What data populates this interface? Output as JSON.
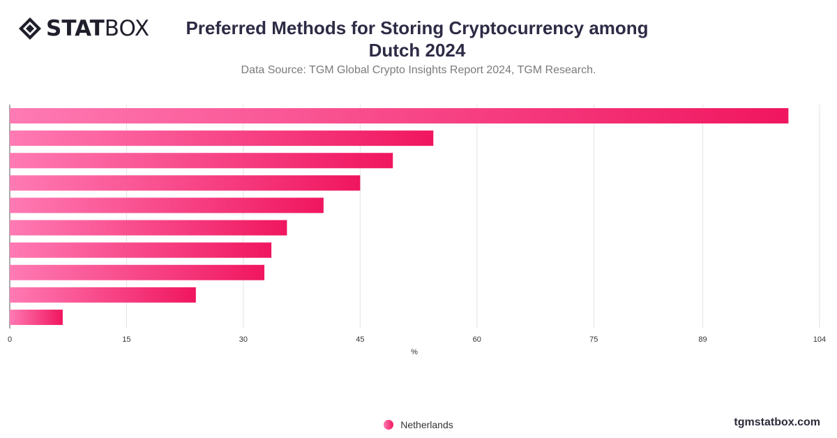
{
  "brand": {
    "logo_bold": "STAT",
    "logo_light": "BOX",
    "site": "tgmstatbox.com"
  },
  "header": {
    "title_line1": "Preferred Methods for Storing Cryptocurrency among",
    "title_line2": "Dutch 2024",
    "subtitle": "Data Source: TGM Global Crypto Insights Report 2024, TGM Research."
  },
  "colors": {
    "bar_start": "#ff7ab3",
    "bar_end": "#f0165f",
    "grid": "#e2e2e2",
    "axis_text": "#333333"
  },
  "chart_data": {
    "type": "bar",
    "orientation": "horizontal",
    "title": "Preferred Methods for Storing Cryptocurrency among Dutch 2024",
    "xlabel": "%",
    "ylabel": "",
    "xlim": [
      0,
      104
    ],
    "xticks": [
      0,
      15,
      30,
      45,
      60,
      75,
      89,
      104
    ],
    "categories": [
      "",
      "",
      "",
      "",
      "",
      "",
      "",
      "",
      "",
      ""
    ],
    "series": [
      {
        "name": "Netherlands",
        "values": [
          100,
          54.4,
          49.2,
          45,
          40.3,
          35.6,
          33.6,
          32.7,
          23.9,
          6.8
        ]
      }
    ],
    "grid": true,
    "legend": "bottom-center"
  }
}
